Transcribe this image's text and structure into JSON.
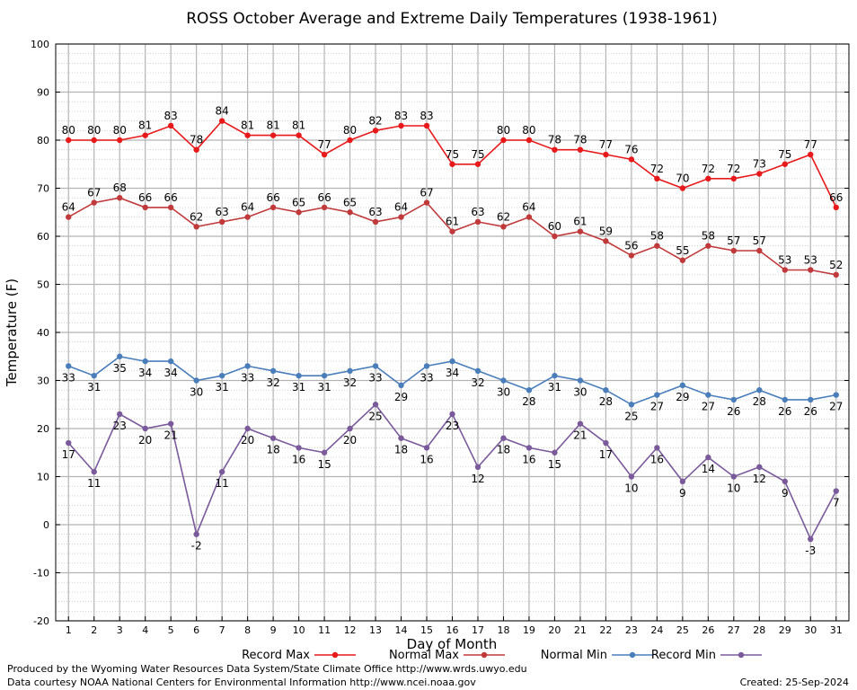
{
  "chart_data": {
    "type": "line",
    "title": "ROSS October Average and Extreme Daily Temperatures (1938-1961)",
    "xlabel": "Day of Month",
    "ylabel": "Temperature (F)",
    "ylim": [
      -20,
      100
    ],
    "yticks": [
      -20,
      -10,
      0,
      10,
      20,
      30,
      40,
      50,
      60,
      70,
      80,
      90,
      100
    ],
    "x": [
      1,
      2,
      3,
      4,
      5,
      6,
      7,
      8,
      9,
      10,
      11,
      12,
      13,
      14,
      15,
      16,
      17,
      18,
      19,
      20,
      21,
      22,
      23,
      24,
      25,
      26,
      27,
      28,
      29,
      30,
      31
    ],
    "grid": true,
    "legend_position": "bottom",
    "series": [
      {
        "name": "Record Max",
        "color": "#e8191b",
        "label_pos": "above",
        "values": [
          80,
          80,
          80,
          81,
          83,
          78,
          84,
          81,
          81,
          81,
          77,
          80,
          82,
          83,
          83,
          75,
          75,
          80,
          80,
          78,
          78,
          77,
          76,
          72,
          70,
          72,
          72,
          73,
          75,
          77,
          66
        ]
      },
      {
        "name": "Normal Max",
        "color": "#c0393b",
        "label_pos": "above",
        "values": [
          64,
          67,
          68,
          66,
          66,
          62,
          63,
          64,
          66,
          65,
          66,
          65,
          63,
          64,
          67,
          61,
          63,
          62,
          64,
          60,
          61,
          59,
          56,
          58,
          55,
          58,
          57,
          57,
          53,
          53,
          52
        ]
      },
      {
        "name": "Normal Min",
        "color": "#4a7ebb",
        "label_pos": "below",
        "values": [
          33,
          31,
          35,
          34,
          34,
          30,
          31,
          33,
          32,
          31,
          31,
          32,
          33,
          29,
          33,
          34,
          32,
          30,
          28,
          31,
          30,
          28,
          25,
          27,
          29,
          27,
          26,
          28,
          26,
          26,
          27
        ]
      },
      {
        "name": "Record Min",
        "color": "#7a5a9a",
        "label_pos": "below",
        "values": [
          17,
          11,
          23,
          20,
          21,
          -2,
          11,
          20,
          18,
          16,
          15,
          20,
          25,
          18,
          16,
          23,
          12,
          18,
          16,
          15,
          21,
          17,
          10,
          16,
          9,
          14,
          10,
          12,
          9,
          -3,
          7
        ]
      }
    ]
  },
  "footer": {
    "produced_by": "Produced by the Wyoming Water Resources Data System/State Climate Office http://www.wrds.uwyo.edu",
    "courtesy": "Data courtesy NOAA National Centers for Environmental Information http://www.ncei.noaa.gov",
    "created": "Created:  25-Sep-2024"
  }
}
